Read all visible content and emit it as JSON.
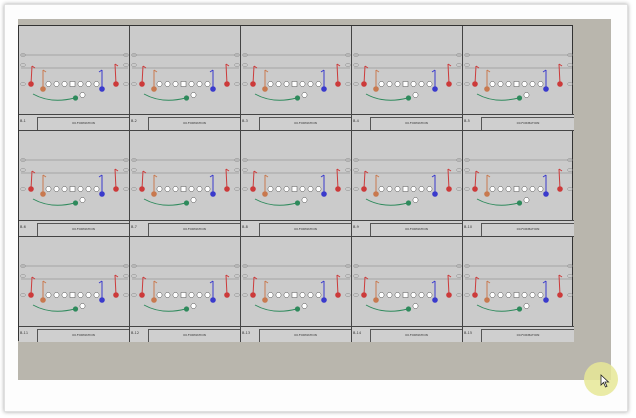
{
  "window": {
    "background": "#ffffff",
    "canvas_color": "#b9b6ad",
    "sheet_color": "#cbcbcb"
  },
  "sheet": {
    "rows": 3,
    "cols": 5,
    "cells": [
      {
        "code": "B-1",
        "name": "00.FORMATION"
      },
      {
        "code": "B-2",
        "name": "00.FORMATION"
      },
      {
        "code": "B-3",
        "name": "00.FORMATION"
      },
      {
        "code": "B-4",
        "name": "00.FORMATION"
      },
      {
        "code": "B-5",
        "name": "00.FORMATION"
      },
      {
        "code": "B-6",
        "name": "00.FORMATION"
      },
      {
        "code": "B-7",
        "name": "00.FORMATION"
      },
      {
        "code": "B-8",
        "name": "00.FORMATION"
      },
      {
        "code": "B-9",
        "name": "00.FORMATION"
      },
      {
        "code": "B-10",
        "name": "00.FORMATION"
      },
      {
        "code": "B-11",
        "name": "00.FORMATION"
      },
      {
        "code": "B-12",
        "name": "00.FORMATION"
      },
      {
        "code": "B-13",
        "name": "00.FORMATION"
      },
      {
        "code": "B-14",
        "name": "00.FORMATION"
      },
      {
        "code": "B-15",
        "name": "00.FORMATION"
      }
    ],
    "player_colors": {
      "receiver": "#cc3a3a",
      "back": "#c8794f",
      "tight_end": "#3a3acc",
      "running_back": "#2e8a5c",
      "lineman": "#ffffff"
    },
    "icons": [
      "yard-line",
      "hash-mark",
      "route-arrow",
      "player-marker"
    ]
  },
  "cursor": {
    "icon": "mouse-pointer-icon",
    "highlight": "#e6e896"
  }
}
